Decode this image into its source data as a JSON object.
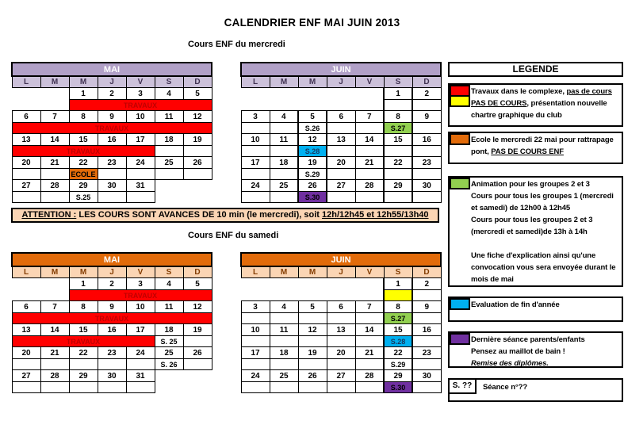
{
  "title": "CALENDRIER ENF MAI JUIN 2013",
  "subtitle_mercredi": "Cours ENF du mercredi",
  "subtitle_samedi": "Cours ENF du samedi",
  "attention": {
    "prefix": "ATTENTION :",
    "body": " LES COURS SONT AVANCES DE 10 min (le mercredi), soit ",
    "times": "12h/12h45 et 12h55/13h40"
  },
  "day_headers": [
    "L",
    "M",
    "M",
    "J",
    "V",
    "S",
    "D"
  ],
  "colors": {
    "purple_header": "#B1A0C7",
    "purple_days": "#CCC1DA",
    "purple_day_text": "#403152",
    "orange_header": "#E26B0A",
    "orange_days": "#FBD5B4",
    "orange_day_text": "#833C00",
    "red": "#FF0000",
    "red_text": "#C00000",
    "ecole": "#E26B0A",
    "green": "#92D050",
    "blue": "#00B0F0",
    "blue_text": "#17375E",
    "purple": "#7030A0",
    "yellow": "#FFFF00",
    "attention_bg": "#FBD5B4"
  },
  "calendars": [
    {
      "id": "mai-mercredi",
      "month": "MAI",
      "theme": "purple",
      "thick_cols": [],
      "weeks": [
        {
          "dates": [
            "",
            "",
            "1",
            "2",
            "3",
            "4",
            "5"
          ],
          "events": [
            {
              "type": "none",
              "span": 2
            },
            {
              "type": "bar",
              "span": 5,
              "label": "TRAVAUX",
              "color": "red"
            }
          ]
        },
        {
          "dates": [
            "6",
            "7",
            "8",
            "9",
            "10",
            "11",
            "12"
          ],
          "events": [
            {
              "type": "bar",
              "span": 7,
              "label": "TRAVAUX",
              "color": "red"
            }
          ]
        },
        {
          "dates": [
            "13",
            "14",
            "15",
            "16",
            "17",
            "18",
            "19"
          ],
          "events": [
            {
              "type": "bar",
              "span": 5,
              "label": "TRAVAUX",
              "color": "red"
            },
            {
              "type": "cell"
            },
            {
              "type": "cell"
            }
          ]
        },
        {
          "dates": [
            "20",
            "21",
            "22",
            "23",
            "24",
            "25",
            "26"
          ],
          "events": [
            {
              "type": "cell"
            },
            {
              "type": "cell"
            },
            {
              "type": "cell",
              "label": "ECOLE",
              "color": "ecole"
            },
            {
              "type": "cell"
            },
            {
              "type": "cell"
            },
            {
              "type": "cell"
            },
            {
              "type": "cell"
            }
          ]
        },
        {
          "dates": [
            "27",
            "28",
            "29",
            "30",
            "31",
            "",
            ""
          ],
          "events": [
            {
              "type": "cell"
            },
            {
              "type": "cell"
            },
            {
              "type": "cell",
              "label": "S.25"
            },
            {
              "type": "cell"
            },
            {
              "type": "cell"
            },
            {
              "type": "none",
              "span": 2
            }
          ]
        }
      ]
    },
    {
      "id": "juin-mercredi",
      "month": "JUIN",
      "theme": "purple",
      "thick_cols": [
        2,
        5
      ],
      "weeks": [
        {
          "dates": [
            "",
            "",
            "",
            "",
            "",
            "1",
            "2"
          ],
          "events": [
            {
              "type": "none",
              "span": 5
            },
            {
              "type": "cell"
            },
            {
              "type": "cell"
            }
          ]
        },
        {
          "dates": [
            "3",
            "4",
            "5",
            "6",
            "7",
            "8",
            "9"
          ],
          "events": [
            {
              "type": "cell"
            },
            {
              "type": "cell"
            },
            {
              "type": "cell",
              "label": "S.26"
            },
            {
              "type": "cell"
            },
            {
              "type": "cell"
            },
            {
              "type": "cell",
              "label": "S.27",
              "color": "green"
            },
            {
              "type": "cell"
            }
          ]
        },
        {
          "dates": [
            "10",
            "11",
            "12",
            "13",
            "14",
            "15",
            "16"
          ],
          "events": [
            {
              "type": "cell"
            },
            {
              "type": "cell"
            },
            {
              "type": "cell",
              "label": "S.28",
              "color": "blue"
            },
            {
              "type": "cell"
            },
            {
              "type": "cell"
            },
            {
              "type": "cell"
            },
            {
              "type": "cell"
            }
          ]
        },
        {
          "dates": [
            "17",
            "18",
            "19",
            "20",
            "21",
            "22",
            "23"
          ],
          "events": [
            {
              "type": "cell"
            },
            {
              "type": "cell"
            },
            {
              "type": "cell",
              "label": "S.29"
            },
            {
              "type": "cell"
            },
            {
              "type": "cell"
            },
            {
              "type": "cell"
            },
            {
              "type": "cell"
            }
          ]
        },
        {
          "dates": [
            "24",
            "25",
            "26",
            "27",
            "28",
            "29",
            "30"
          ],
          "events": [
            {
              "type": "cell"
            },
            {
              "type": "cell"
            },
            {
              "type": "cell",
              "label": "S.30",
              "color": "purple"
            },
            {
              "type": "cell"
            },
            {
              "type": "cell"
            },
            {
              "type": "cell"
            },
            {
              "type": "cell"
            }
          ]
        }
      ]
    },
    {
      "id": "mai-samedi",
      "month": "MAI",
      "theme": "orange",
      "thick_cols": [],
      "weeks": [
        {
          "dates": [
            "",
            "",
            "1",
            "2",
            "3",
            "4",
            "5"
          ],
          "events": [
            {
              "type": "none",
              "span": 2
            },
            {
              "type": "bar",
              "span": 5,
              "label": "TRAVAUX",
              "color": "red"
            }
          ]
        },
        {
          "dates": [
            "6",
            "7",
            "8",
            "9",
            "10",
            "11",
            "12"
          ],
          "events": [
            {
              "type": "bar",
              "span": 7,
              "label": "TRAVAUX",
              "color": "red"
            }
          ]
        },
        {
          "dates": [
            "13",
            "14",
            "15",
            "16",
            "17",
            "18",
            "19"
          ],
          "events": [
            {
              "type": "bar",
              "span": 5,
              "label": "TRAVAUX",
              "color": "red"
            },
            {
              "type": "cell",
              "label": "S. 25"
            },
            {
              "type": "cell"
            }
          ]
        },
        {
          "dates": [
            "20",
            "21",
            "22",
            "23",
            "24",
            "25",
            "26"
          ],
          "events": [
            {
              "type": "cell"
            },
            {
              "type": "cell"
            },
            {
              "type": "cell"
            },
            {
              "type": "cell"
            },
            {
              "type": "cell"
            },
            {
              "type": "cell",
              "label": "S. 26"
            },
            {
              "type": "cell"
            }
          ]
        },
        {
          "dates": [
            "27",
            "28",
            "29",
            "30",
            "31",
            "",
            ""
          ],
          "events": [
            {
              "type": "cell"
            },
            {
              "type": "cell"
            },
            {
              "type": "cell"
            },
            {
              "type": "cell"
            },
            {
              "type": "cell"
            },
            {
              "type": "none",
              "span": 2
            }
          ]
        }
      ]
    },
    {
      "id": "juin-samedi",
      "month": "JUIN",
      "theme": "orange",
      "thick_cols": [
        5
      ],
      "weeks": [
        {
          "dates": [
            "",
            "",
            "",
            "",
            "",
            "1",
            "2"
          ],
          "events": [
            {
              "type": "none",
              "span": 5
            },
            {
              "type": "cell",
              "color": "yellow"
            },
            {
              "type": "cell"
            }
          ]
        },
        {
          "dates": [
            "3",
            "4",
            "5",
            "6",
            "7",
            "8",
            "9"
          ],
          "events": [
            {
              "type": "cell"
            },
            {
              "type": "cell"
            },
            {
              "type": "cell"
            },
            {
              "type": "cell"
            },
            {
              "type": "cell"
            },
            {
              "type": "cell",
              "label": "S.27",
              "color": "green"
            },
            {
              "type": "cell"
            }
          ]
        },
        {
          "dates": [
            "10",
            "11",
            "12",
            "13",
            "14",
            "15",
            "16"
          ],
          "events": [
            {
              "type": "cell"
            },
            {
              "type": "cell"
            },
            {
              "type": "cell"
            },
            {
              "type": "cell"
            },
            {
              "type": "cell"
            },
            {
              "type": "cell",
              "label": "S.28",
              "color": "blue"
            },
            {
              "type": "cell"
            }
          ]
        },
        {
          "dates": [
            "17",
            "18",
            "19",
            "20",
            "21",
            "22",
            "23"
          ],
          "events": [
            {
              "type": "cell"
            },
            {
              "type": "cell"
            },
            {
              "type": "cell"
            },
            {
              "type": "cell"
            },
            {
              "type": "cell"
            },
            {
              "type": "cell",
              "label": "S.29"
            },
            {
              "type": "cell"
            }
          ]
        },
        {
          "dates": [
            "24",
            "25",
            "26",
            "27",
            "28",
            "29",
            "30"
          ],
          "events": [
            {
              "type": "cell"
            },
            {
              "type": "cell"
            },
            {
              "type": "cell"
            },
            {
              "type": "cell"
            },
            {
              "type": "cell"
            },
            {
              "type": "cell",
              "label": "S.30",
              "color": "purple"
            },
            {
              "type": "cell"
            }
          ]
        }
      ]
    }
  ],
  "legend": {
    "title": "LEGENDE",
    "boxes": [
      {
        "swatches": [
          "red",
          "yellow"
        ],
        "lines": [
          [
            {
              "t": "Travaux dans le complexe, "
            },
            {
              "t": "pas de cours",
              "u": true
            }
          ],
          [
            {
              "t": "PAS DE COURS",
              "u": true
            },
            {
              "t": ", présentation nouvelle"
            }
          ],
          [
            {
              "t": "chartre graphique du club"
            }
          ]
        ]
      },
      {
        "swatches": [
          "ecole"
        ],
        "lines": [
          [
            {
              "t": "Ecole le mercredi 22 mai pour rattrapage"
            }
          ],
          [
            {
              "t": "pont, "
            },
            {
              "t": "PAS DE COURS ENF",
              "u": true
            }
          ]
        ]
      },
      {
        "swatches": [
          "green"
        ],
        "lines": [
          [
            {
              "t": "Animation pour les groupes 2 et 3"
            }
          ],
          [
            {
              "t": "Cours pour tous les groupes 1 (mercredi"
            }
          ],
          [
            {
              "t": "et samedi) de 12h00 à 12h45"
            }
          ],
          [
            {
              "t": "Cours pour tous les groupes 2 et 3"
            }
          ],
          [
            {
              "t": "(mercredi et samedi)de 13h à 14h"
            }
          ],
          [
            {
              "t": ""
            }
          ],
          [
            {
              "t": "Une fiche d'explication ainsi qu'une"
            }
          ],
          [
            {
              "t": "convocation vous sera envoyée durant le"
            }
          ],
          [
            {
              "t": "mois de mai"
            }
          ]
        ]
      },
      {
        "swatches": [
          "blue"
        ],
        "lines": [
          [
            {
              "t": "Evaluation de fin d'année"
            }
          ]
        ]
      },
      {
        "swatches": [
          "purple"
        ],
        "lines": [
          [
            {
              "t": "Dernière séance parents/enfants"
            }
          ],
          [
            {
              "t": "Pensez au maillot de bain !"
            }
          ],
          [
            {
              "t": "Remise des diplômes.",
              "i": true
            }
          ]
        ]
      },
      {
        "swatch_label": "S. ??",
        "lines": [
          [
            {
              "t": "Séance n°??"
            }
          ]
        ]
      }
    ]
  }
}
